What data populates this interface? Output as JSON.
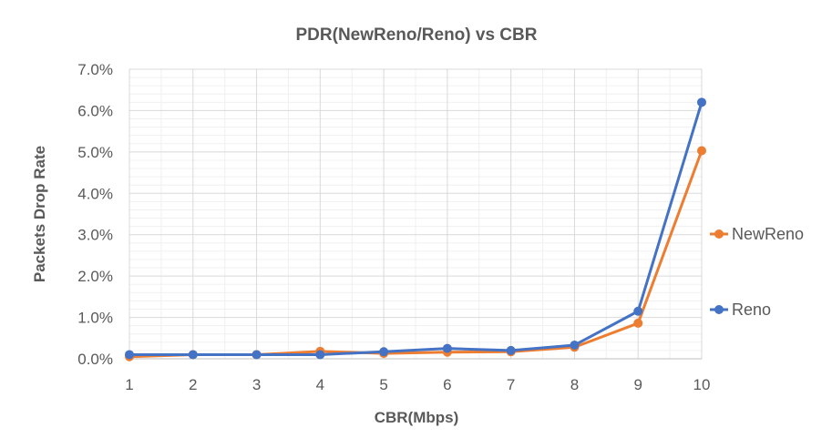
{
  "chart_data": {
    "type": "line",
    "title": "PDR(NewReno/Reno) vs CBR",
    "xlabel": "CBR(Mbps)",
    "ylabel": "Packets Drop Rate",
    "categories": [
      "1",
      "2",
      "3",
      "4",
      "5",
      "6",
      "7",
      "8",
      "9",
      "10"
    ],
    "ylim": [
      0,
      7.0
    ],
    "yticks": [
      "0.0%",
      "1.0%",
      "2.0%",
      "3.0%",
      "4.0%",
      "5.0%",
      "6.0%",
      "7.0%"
    ],
    "grid": true,
    "legend_position": "right",
    "series": [
      {
        "name": "NewReno",
        "color": "#ED7D31",
        "values": [
          0.05,
          0.1,
          0.1,
          0.18,
          0.13,
          0.16,
          0.17,
          0.28,
          0.86,
          5.03
        ]
      },
      {
        "name": "Reno",
        "color": "#4472C4",
        "values": [
          0.1,
          0.1,
          0.1,
          0.1,
          0.17,
          0.25,
          0.2,
          0.33,
          1.15,
          6.2
        ]
      }
    ]
  }
}
